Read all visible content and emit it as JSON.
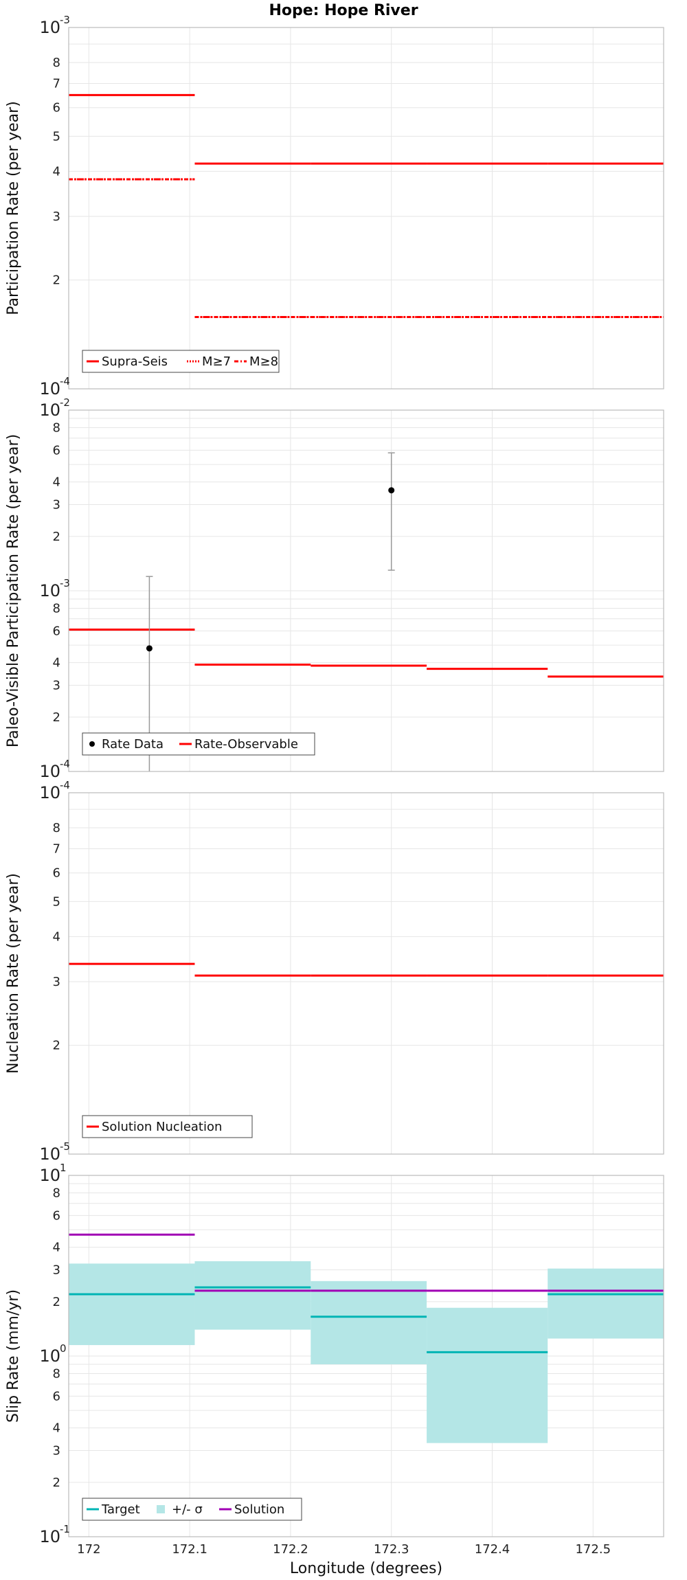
{
  "figure": {
    "title": "Hope: Hope River",
    "xlabel": "Longitude (degrees)",
    "xticks": [
      "172",
      "172.1",
      "172.2",
      "172.3",
      "172.4",
      "172.5"
    ]
  },
  "colors": {
    "red": "#ff0000",
    "teal": "#00b4b4",
    "band": "#b4e6e6",
    "purple": "#a000b4",
    "black": "#000000",
    "grid": "#e6e6e6",
    "errorbar": "#999999"
  },
  "chart_data": [
    {
      "type": "line",
      "ylabel": "Participation Rate (per year)",
      "yscale": "log",
      "ylim": [
        0.0001,
        0.001
      ],
      "xlim": [
        171.98,
        172.57
      ],
      "ytick_labels": [
        {
          "base": "10",
          "exp": "-4"
        },
        {
          "base": "10",
          "exp": "-3"
        },
        "2",
        "3",
        "4",
        "5",
        "6",
        "7",
        "8"
      ],
      "legend": [
        "Supra-Seis",
        "M≥7",
        "M≥8"
      ],
      "legend_position": "bottom-left",
      "series": [
        {
          "name": "Supra-Seis",
          "style": "solid",
          "segments": [
            [
              171.98,
              172.105,
              0.00065
            ],
            [
              172.105,
              172.22,
              0.00042
            ],
            [
              172.22,
              172.335,
              0.00042
            ],
            [
              172.335,
              172.455,
              0.00042
            ],
            [
              172.455,
              172.57,
              0.00042
            ]
          ]
        },
        {
          "name": "M≥7",
          "style": "dotted",
          "segments": [
            [
              171.98,
              172.105,
              0.00038
            ],
            [
              172.105,
              172.22,
              0.000158
            ],
            [
              172.22,
              172.335,
              0.000158
            ],
            [
              172.335,
              172.455,
              0.000158
            ],
            [
              172.455,
              172.57,
              0.000158
            ]
          ]
        },
        {
          "name": "M≥8",
          "style": "dashdot",
          "segments": [
            [
              171.98,
              172.105,
              0.00038
            ],
            [
              172.105,
              172.22,
              0.000158
            ],
            [
              172.22,
              172.335,
              0.000158
            ],
            [
              172.335,
              172.455,
              0.000158
            ],
            [
              172.455,
              172.57,
              0.000158
            ]
          ]
        }
      ]
    },
    {
      "type": "line",
      "ylabel": "Paleo-Visible Participation Rate (per year)",
      "yscale": "log",
      "ylim": [
        0.0001,
        0.01
      ],
      "xlim": [
        171.98,
        172.57
      ],
      "ytick_labels": [
        {
          "base": "10",
          "exp": "-4"
        },
        {
          "base": "10",
          "exp": "-3"
        },
        {
          "base": "10",
          "exp": "-2"
        },
        "2",
        "3",
        "4",
        "6",
        "8",
        "2",
        "3",
        "4",
        "6",
        "8"
      ],
      "legend": [
        "Rate Data",
        "Rate-Observable"
      ],
      "legend_position": "bottom-left",
      "points": [
        {
          "x": 172.06,
          "y": 0.00048,
          "ylow": 0.0001,
          "yhigh": 0.0012
        },
        {
          "x": 172.3,
          "y": 0.0036,
          "ylow": 0.0013,
          "yhigh": 0.0058
        }
      ],
      "series": [
        {
          "name": "Rate-Observable",
          "segments": [
            [
              171.98,
              172.105,
              0.00061
            ],
            [
              172.105,
              172.22,
              0.00039
            ],
            [
              172.22,
              172.335,
              0.000385
            ],
            [
              172.335,
              172.455,
              0.00037
            ],
            [
              172.455,
              172.57,
              0.000335
            ]
          ]
        }
      ]
    },
    {
      "type": "line",
      "ylabel": "Nucleation Rate (per year)",
      "yscale": "log",
      "ylim": [
        1e-05,
        0.0001
      ],
      "xlim": [
        171.98,
        172.57
      ],
      "ytick_labels": [
        {
          "base": "10",
          "exp": "-5"
        },
        {
          "base": "10",
          "exp": "-4"
        },
        "2",
        "3",
        "4",
        "5",
        "6",
        "7",
        "8"
      ],
      "legend": [
        "Solution Nucleation"
      ],
      "legend_position": "bottom-left",
      "series": [
        {
          "name": "Solution Nucleation",
          "segments": [
            [
              171.98,
              172.105,
              3.36e-05
            ],
            [
              172.105,
              172.22,
              3.12e-05
            ],
            [
              172.22,
              172.335,
              3.12e-05
            ],
            [
              172.335,
              172.455,
              3.12e-05
            ],
            [
              172.455,
              172.57,
              3.12e-05
            ]
          ]
        }
      ]
    },
    {
      "type": "line",
      "ylabel": "Slip Rate (mm/yr)",
      "yscale": "log",
      "ylim": [
        0.1,
        10
      ],
      "xlim": [
        171.98,
        172.57
      ],
      "ytick_labels": [
        {
          "base": "10",
          "exp": "-1"
        },
        {
          "base": "10",
          "exp": "0"
        },
        {
          "base": "10",
          "exp": "1"
        },
        "2",
        "3",
        "4",
        "6",
        "8",
        "2",
        "3",
        "4",
        "6",
        "8"
      ],
      "legend": [
        "Target",
        "+/- σ",
        "Solution"
      ],
      "legend_position": "bottom-left",
      "bands": [
        [
          171.98,
          172.105,
          1.15,
          3.25
        ],
        [
          172.105,
          172.22,
          1.4,
          3.35
        ],
        [
          172.22,
          172.335,
          0.9,
          2.6
        ],
        [
          172.335,
          172.455,
          0.33,
          1.85
        ],
        [
          172.455,
          172.57,
          1.25,
          3.05
        ]
      ],
      "series": [
        {
          "name": "Target",
          "segments": [
            [
              171.98,
              172.105,
              2.2
            ],
            [
              172.105,
              172.22,
              2.4
            ],
            [
              172.22,
              172.335,
              1.65
            ],
            [
              172.335,
              172.455,
              1.05
            ],
            [
              172.455,
              172.57,
              2.2
            ]
          ]
        },
        {
          "name": "Solution",
          "segments": [
            [
              171.98,
              172.105,
              4.7
            ],
            [
              172.105,
              172.22,
              2.3
            ],
            [
              172.22,
              172.335,
              2.3
            ],
            [
              172.335,
              172.455,
              2.3
            ],
            [
              172.455,
              172.57,
              2.3
            ]
          ]
        }
      ]
    }
  ]
}
